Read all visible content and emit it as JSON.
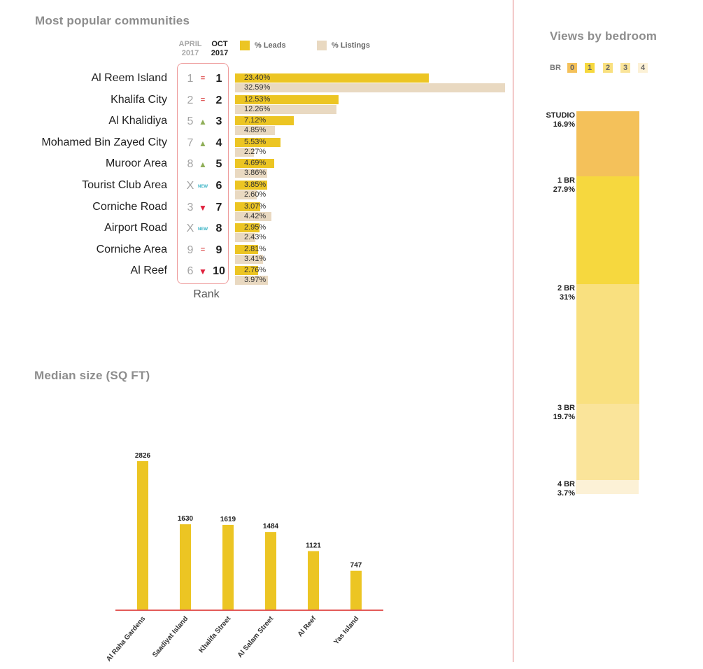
{
  "titles": {
    "communities": "Most popular communities",
    "median": "Median size (SQ FT)",
    "views": "Views by bedroom"
  },
  "header": {
    "april": "APRIL 2017",
    "oct": "OCT 2017",
    "rank_label": "Rank"
  },
  "legend": {
    "leads_label": "% Leads",
    "listings_label": "% Listings"
  },
  "colors": {
    "leads": "#ecc523",
    "listings": "#e9d9c1",
    "median_bar": "#ecc523",
    "axis": "#e35a58",
    "divider": "#e07b7b"
  },
  "chart_data": [
    {
      "type": "bar",
      "title": "Most popular communities",
      "orientation": "horizontal",
      "xlim": [
        0,
        32.59
      ],
      "categories": [
        "Al Reem Island",
        "Khalifa City",
        "Al Khalidiya",
        "Mohamed Bin Zayed City",
        "Muroor Area",
        "Tourist Club Area",
        "Corniche Road",
        "Airport Road",
        "Corniche Area",
        "Al Reef"
      ],
      "rank_april": [
        "1",
        "2",
        "5",
        "7",
        "8",
        "X",
        "3",
        "X",
        "9",
        "6"
      ],
      "rank_oct": [
        "1",
        "2",
        "3",
        "4",
        "5",
        "6",
        "7",
        "8",
        "9",
        "10"
      ],
      "trend": [
        "same",
        "same",
        "up",
        "up",
        "up",
        "new",
        "down",
        "new",
        "same",
        "down"
      ],
      "series": [
        {
          "name": "% Leads",
          "values": [
            23.4,
            12.53,
            7.12,
            5.53,
            4.69,
            3.85,
            3.07,
            2.95,
            2.81,
            2.76
          ],
          "labels": [
            "23.40%",
            "12.53%",
            "7.12%",
            "5.53%",
            "4.69%",
            "3.85%",
            "3.07%",
            "2.95%",
            "2.81%",
            "2.76%"
          ]
        },
        {
          "name": "% Listings",
          "values": [
            32.59,
            12.26,
            4.85,
            2.27,
            3.86,
            2.6,
            4.42,
            2.43,
            3.41,
            3.97
          ],
          "labels": [
            "32.59%",
            "12.26%",
            "4.85%",
            "2.27%",
            "3.86%",
            "2.60%",
            "4.42%",
            "2.43%",
            "3.41%",
            "3.97%"
          ]
        }
      ]
    },
    {
      "type": "bar",
      "title": "Median size (SQ FT)",
      "categories": [
        "Al Raha Gardens",
        "Saadiyat Island",
        "Khalifa Street",
        "Al Salam Street",
        "Al Reef",
        "Yas Island"
      ],
      "values": [
        2826,
        1630,
        1619,
        1484,
        1121,
        747
      ],
      "value_labels": [
        "2826",
        "1630",
        "1619",
        "1484",
        "1121",
        "747"
      ],
      "ylim": [
        0,
        2826
      ]
    },
    {
      "type": "bar",
      "stacked": true,
      "title": "Views by bedroom",
      "key_label": "BR",
      "key_items": [
        "0",
        "1",
        "2",
        "3",
        "4"
      ],
      "categories": [
        "STUDIO",
        "1 BR",
        "2 BR",
        "3 BR",
        "4 BR"
      ],
      "values": [
        16.9,
        27.9,
        31,
        19.7,
        3.7
      ],
      "value_labels": [
        "16.9%",
        "27.9%",
        "31%",
        "19.7%",
        "3.7%"
      ],
      "colors": [
        "#f4c15a",
        "#f6d83e",
        "#f9e07f",
        "#fae49a",
        "#fcf1d6"
      ]
    }
  ]
}
